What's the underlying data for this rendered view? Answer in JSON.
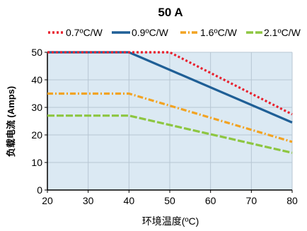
{
  "chart_data": {
    "type": "line",
    "title": "50 A",
    "xlabel": "环境温度(ºC)",
    "ylabel": "负载电流 (Amps)",
    "xlim": [
      20,
      80
    ],
    "ylim": [
      0,
      50
    ],
    "xticks": [
      20,
      30,
      40,
      50,
      60,
      70,
      80
    ],
    "yticks": [
      0,
      10,
      20,
      30,
      40,
      50
    ],
    "grid": true,
    "legend_position": "top",
    "series": [
      {
        "name": "0.7ºC/W",
        "color": "#e8212e",
        "dash": "dotted",
        "x": [
          20,
          50,
          80
        ],
        "y": [
          50,
          50,
          27.5
        ]
      },
      {
        "name": "0.9ºC/W",
        "color": "#1f5f96",
        "dash": "solid",
        "x": [
          20,
          40,
          80
        ],
        "y": [
          50,
          50,
          24.5
        ]
      },
      {
        "name": "1.6ºC/W",
        "color": "#f2a322",
        "dash": "dashdot",
        "x": [
          20,
          40,
          80
        ],
        "y": [
          35,
          35,
          17.5
        ]
      },
      {
        "name": "2.1ºC/W",
        "color": "#8dc641",
        "dash": "dashed",
        "x": [
          20,
          40,
          80
        ],
        "y": [
          27,
          27,
          13.5
        ]
      }
    ],
    "fill_color": "#dbe9f3"
  }
}
